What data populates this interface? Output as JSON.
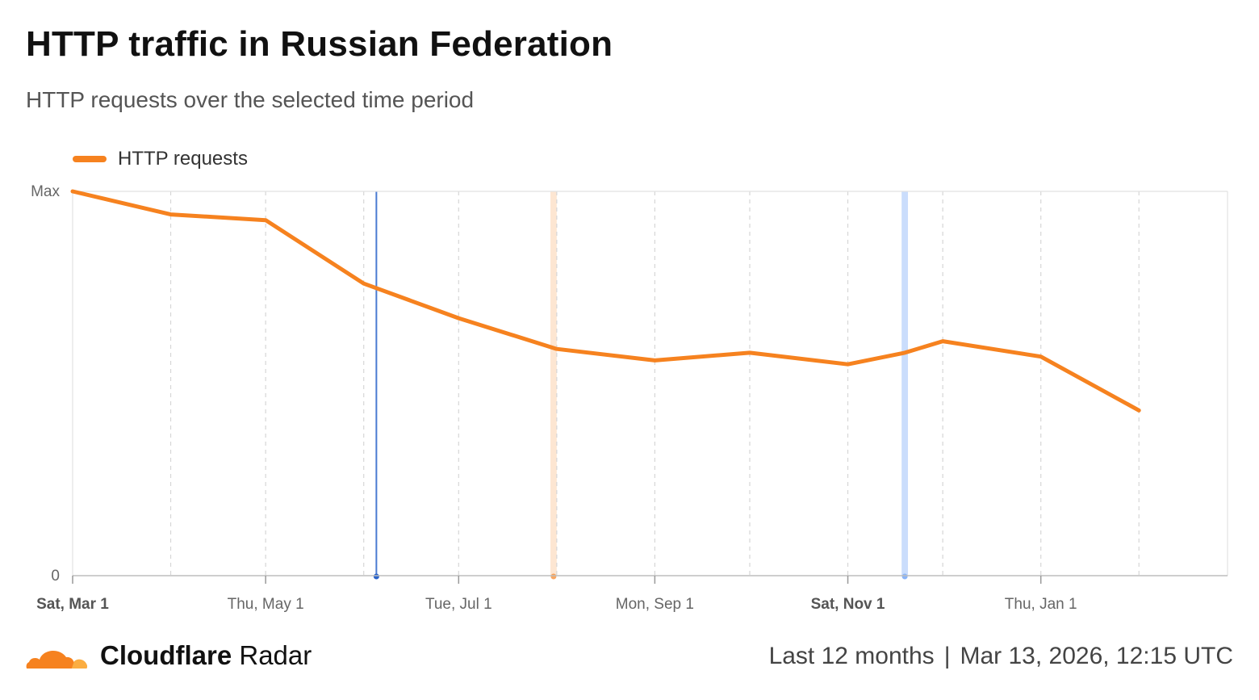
{
  "header": {
    "title": "HTTP traffic in Russian Federation",
    "subtitle": "HTTP requests over the selected time period"
  },
  "legend": {
    "label": "HTTP requests"
  },
  "footer": {
    "brand_bold": "Cloudflare",
    "brand_light": "Radar",
    "range": "Last 12 months",
    "separator": "|",
    "timestamp": "Mar 13, 2026, 12:15 UTC"
  },
  "colors": {
    "series": "#f6821f",
    "annotation_blue": "#2a63c9",
    "annotation_orange": "#f6821f",
    "annotation_lightblue": "#8ab4f8"
  },
  "chart_data": {
    "type": "line",
    "title": "HTTP traffic in Russian Federation",
    "xlabel": "",
    "ylabel": "",
    "x_range": [
      0,
      365
    ],
    "ylim": [
      0,
      100
    ],
    "y_tick_labels": [
      {
        "value": 100,
        "label": "Max"
      },
      {
        "value": 0,
        "label": "0"
      }
    ],
    "x_tick_labels": [
      {
        "day": 0,
        "label": "Sat, Mar 1",
        "bold": true
      },
      {
        "day": 61,
        "label": "Thu, May 1",
        "bold": false
      },
      {
        "day": 122,
        "label": "Tue, Jul 1",
        "bold": false
      },
      {
        "day": 184,
        "label": "Mon, Sep 1",
        "bold": false
      },
      {
        "day": 245,
        "label": "Sat, Nov 1",
        "bold": true
      },
      {
        "day": 306,
        "label": "Thu, Jan 1",
        "bold": false
      }
    ],
    "gridline_days": [
      0,
      31,
      61,
      92,
      122,
      153,
      184,
      214,
      245,
      275,
      306,
      337
    ],
    "series": [
      {
        "name": "HTTP requests",
        "points": [
          {
            "day": 0,
            "value": 100
          },
          {
            "day": 31,
            "value": 94
          },
          {
            "day": 61,
            "value": 92.5
          },
          {
            "day": 92,
            "value": 76
          },
          {
            "day": 122,
            "value": 67
          },
          {
            "day": 153,
            "value": 59
          },
          {
            "day": 184,
            "value": 56
          },
          {
            "day": 214,
            "value": 58
          },
          {
            "day": 245,
            "value": 55
          },
          {
            "day": 263,
            "value": 58
          },
          {
            "day": 275,
            "value": 61
          },
          {
            "day": 306,
            "value": 57
          },
          {
            "day": 337,
            "value": 43
          }
        ]
      }
    ],
    "annotations": [
      {
        "type": "line",
        "day": 96,
        "color": "#2a63c9"
      },
      {
        "type": "band",
        "day_start": 151,
        "day_end": 153,
        "color": "#f6821f"
      },
      {
        "type": "band",
        "day_start": 262,
        "day_end": 264,
        "color": "#8ab4f8"
      }
    ]
  }
}
